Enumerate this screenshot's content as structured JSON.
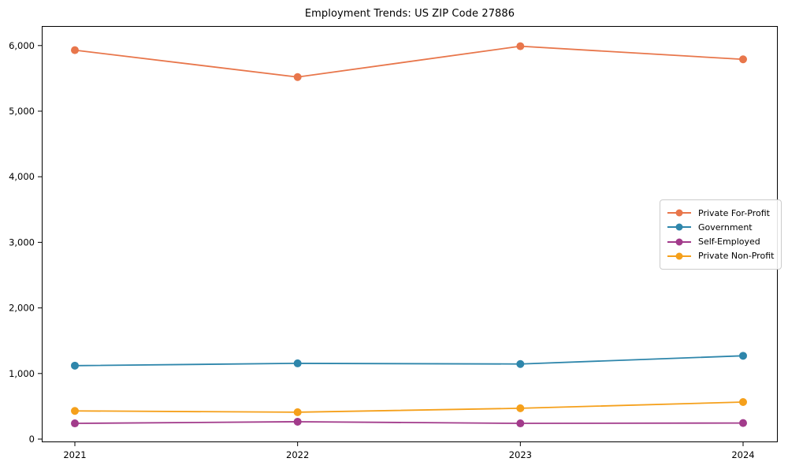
{
  "chart_data": {
    "type": "line",
    "title": "Employment Trends: US ZIP Code 27886",
    "xlabel": "",
    "ylabel": "",
    "x": [
      2021,
      2022,
      2023,
      2024
    ],
    "x_tick_labels": [
      "2021",
      "2022",
      "2023",
      "2024"
    ],
    "y_ticks": [
      0,
      1000,
      2000,
      3000,
      4000,
      5000,
      6000
    ],
    "y_tick_labels": [
      "0",
      "1,000",
      "2,000",
      "3,000",
      "4,000",
      "5,000",
      "6,000"
    ],
    "ylim": [
      -50,
      6300
    ],
    "grid": false,
    "legend_position": "center-right",
    "marker": "circle",
    "series": [
      {
        "name": "Private For-Profit",
        "color": "#E8764B",
        "values": [
          5930,
          5520,
          5990,
          5790
        ]
      },
      {
        "name": "Government",
        "color": "#2E86AB",
        "values": [
          1120,
          1155,
          1145,
          1270
        ]
      },
      {
        "name": "Self-Employed",
        "color": "#A23B8B",
        "values": [
          240,
          265,
          240,
          245
        ]
      },
      {
        "name": "Private Non-Profit",
        "color": "#F5A01B",
        "values": [
          430,
          410,
          470,
          565
        ]
      }
    ]
  },
  "axes": {
    "spine_color": "#000000"
  }
}
